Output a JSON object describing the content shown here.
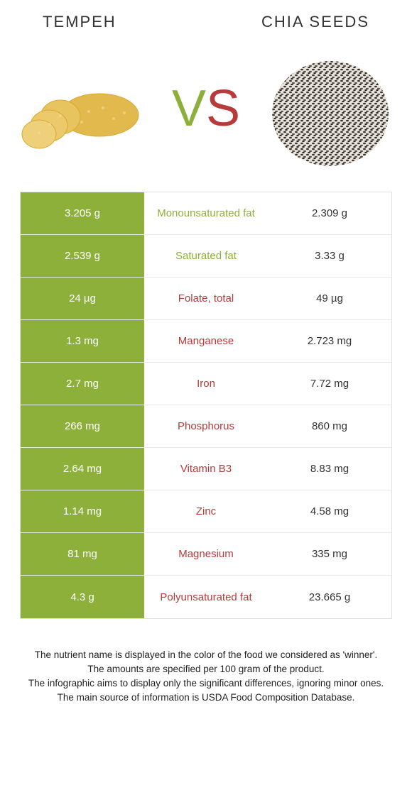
{
  "foods": {
    "left": {
      "name": "TEMPEH",
      "color": "#8db03b"
    },
    "right": {
      "name": "CHIA SEEDS",
      "color": "#b73b3a"
    }
  },
  "vs": {
    "v": "V",
    "s": "S"
  },
  "colors": {
    "left_bg": "#8db03b",
    "left_text": "#ffffff",
    "right_bg": "#ffffff",
    "right_text": "#333333",
    "winner_left": "#8db03b",
    "winner_right": "#b73b3a",
    "border": "#e0e0e0"
  },
  "rows": [
    {
      "left": "3.205 g",
      "label": "Monounsaturated fat",
      "right": "2.309 g",
      "winner": "left"
    },
    {
      "left": "2.539 g",
      "label": "Saturated fat",
      "right": "3.33 g",
      "winner": "left"
    },
    {
      "left": "24 µg",
      "label": "Folate, total",
      "right": "49 µg",
      "winner": "right"
    },
    {
      "left": "1.3 mg",
      "label": "Manganese",
      "right": "2.723 mg",
      "winner": "right"
    },
    {
      "left": "2.7 mg",
      "label": "Iron",
      "right": "7.72 mg",
      "winner": "right"
    },
    {
      "left": "266 mg",
      "label": "Phosphorus",
      "right": "860 mg",
      "winner": "right"
    },
    {
      "left": "2.64 mg",
      "label": "Vitamin B3",
      "right": "8.83 mg",
      "winner": "right"
    },
    {
      "left": "1.14 mg",
      "label": "Zinc",
      "right": "4.58 mg",
      "winner": "right"
    },
    {
      "left": "81 mg",
      "label": "Magnesium",
      "right": "335 mg",
      "winner": "right"
    },
    {
      "left": "4.3 g",
      "label": "Polyunsaturated fat",
      "right": "23.665 g",
      "winner": "right"
    }
  ],
  "footer": {
    "l1": "The nutrient name is displayed in the color of the food we considered as 'winner'.",
    "l2": "The amounts are specified per 100 gram of the product.",
    "l3": "The infographic aims to display only the significant differences, ignoring minor ones.",
    "l4": "The main source of information is USDA Food Composition Database."
  }
}
